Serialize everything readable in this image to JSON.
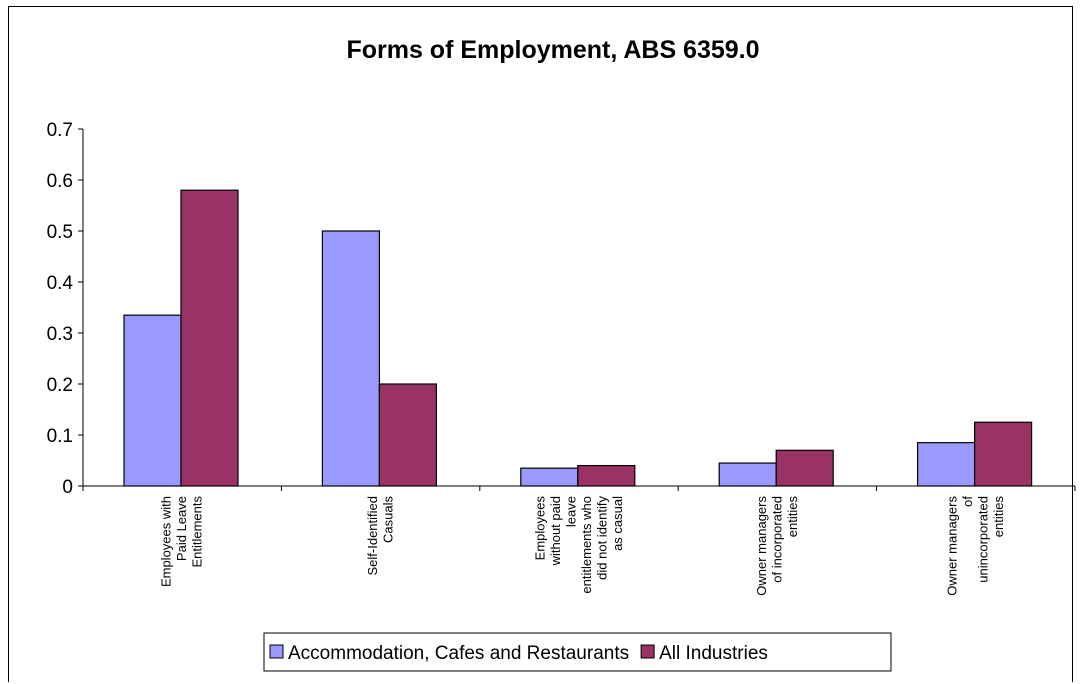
{
  "chart_data": {
    "type": "bar",
    "title": "Forms of Employment, ABS 6359.0",
    "xlabel": "",
    "ylabel": "",
    "ylim": [
      0,
      0.7
    ],
    "yticks": [
      "0",
      "0.1",
      "0.2",
      "0.3",
      "0.4",
      "0.5",
      "0.6",
      "0.7"
    ],
    "grid": false,
    "legend": "bottom",
    "categories": [
      [
        "Employees with",
        "Paid Leave",
        "Entitlements"
      ],
      [
        "Self-Identified",
        "Casuals"
      ],
      [
        "Employees",
        "without paid",
        "leave",
        "entitlements who",
        "did not identify",
        "as casual"
      ],
      [
        "Owner managers",
        "of incorporated",
        "entities"
      ],
      [
        "Owner managers",
        "of",
        "unincorporated",
        "entities"
      ]
    ],
    "series": [
      {
        "name": "Accommodation, Cafes and Restaurants",
        "color": "#9999ff",
        "values": [
          0.335,
          0.5,
          0.035,
          0.045,
          0.085
        ]
      },
      {
        "name": "All Industries",
        "color": "#993366",
        "values": [
          0.58,
          0.2,
          0.04,
          0.07,
          0.125
        ]
      }
    ]
  }
}
